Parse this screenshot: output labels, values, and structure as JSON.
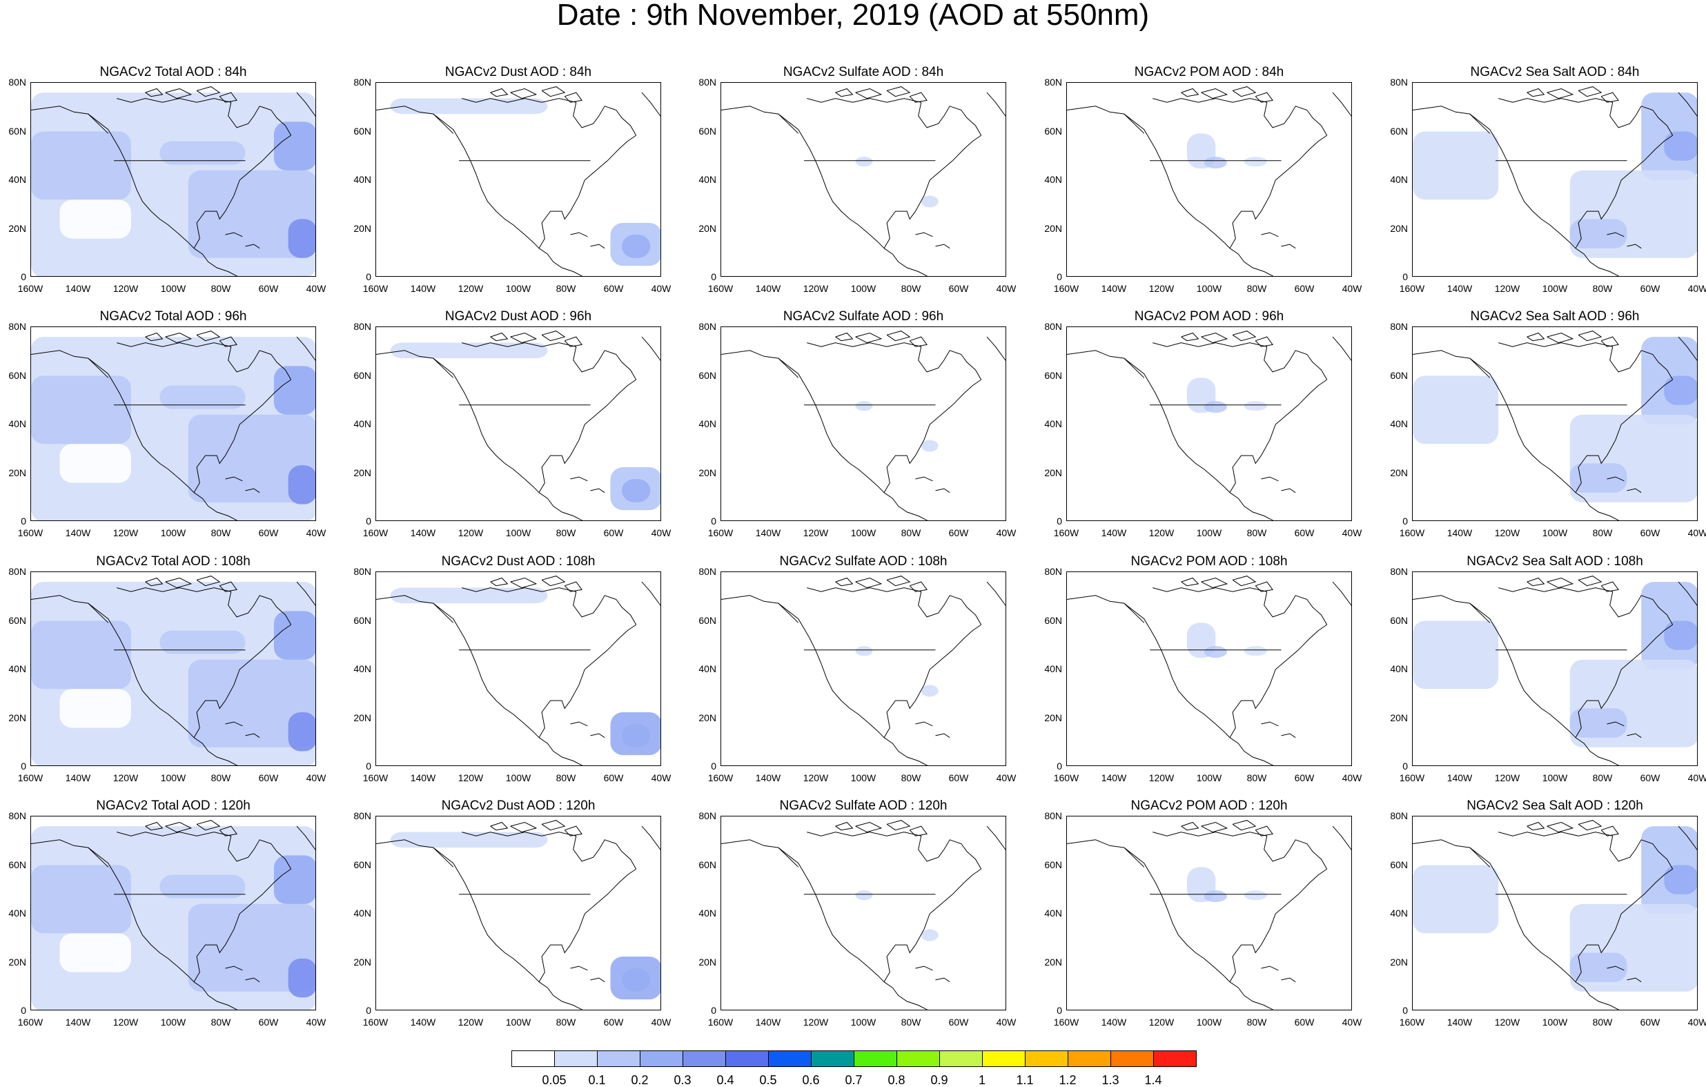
{
  "title": "Date : 9th November, 2019 (AOD at 550nm)",
  "species": [
    "Total",
    "Dust",
    "Sulfate",
    "POM",
    "Sea Salt"
  ],
  "panel_titles": [
    [
      "NGACv2 Total AOD : 84h",
      "NGACv2 Dust AOD : 84h",
      "NGACv2 Sulfate AOD : 84h",
      "NGACv2 POM AOD : 84h",
      "NGACv2 Sea Salt AOD : 84h"
    ],
    [
      "NGACv2 Total AOD : 96h",
      "NGACv2 Dust AOD : 96h",
      "NGACv2 Sulfate AOD : 96h",
      "NGACv2 POM AOD : 96h",
      "NGACv2 Sea Salt AOD : 96h"
    ],
    [
      "NGACv2 Total AOD : 108h",
      "NGACv2 Dust AOD : 108h",
      "NGACv2 Sulfate AOD : 108h",
      "NGACv2 POM AOD : 108h",
      "NGACv2 Sea Salt AOD : 108h"
    ],
    [
      "NGACv2 Total AOD : 120h",
      "NGACv2 Dust AOD : 120h",
      "NGACv2 Sulfate AOD : 120h",
      "NGACv2 POM AOD : 120h",
      "NGACv2 Sea Salt  AOD : 120h"
    ]
  ],
  "lat_ticks": [
    "80N",
    "60N",
    "40N",
    "20N",
    "0"
  ],
  "lon_ticks": [
    "160W",
    "140W",
    "120W",
    "100W",
    "80W",
    "60W",
    "40W"
  ],
  "colorbar": {
    "labels": [
      "0.05",
      "0.1",
      "0.2",
      "0.3",
      "0.4",
      "0.5",
      "0.6",
      "0.7",
      "0.8",
      "0.9",
      "1",
      "1.1",
      "1.2",
      "1.3",
      "1.4"
    ],
    "colors": [
      "#ffffff",
      "#d3defa",
      "#b5c6f7",
      "#96acf4",
      "#7b8ff0",
      "#5a6ff0",
      "#0a5cf5",
      "#00999a",
      "#52f20a",
      "#8ff50a",
      "#c6f54b",
      "#fffa00",
      "#ffc400",
      "#ffa100",
      "#ff7800",
      "#ff1e14"
    ]
  },
  "chart_data": {
    "type": "map",
    "domain": "North America, lon 160W-40W, lat 0-80N",
    "forecast_hours": [
      "84h",
      "96h",
      "108h",
      "120h"
    ],
    "species": [
      "Total",
      "Dust",
      "Sulfate",
      "POM",
      "Sea Salt"
    ],
    "colorbar_levels": [
      0.05,
      0.1,
      0.2,
      0.3,
      0.4,
      0.5,
      0.6,
      0.7,
      0.8,
      0.9,
      1,
      1.1,
      1.2,
      1.3,
      1.4
    ]
  }
}
